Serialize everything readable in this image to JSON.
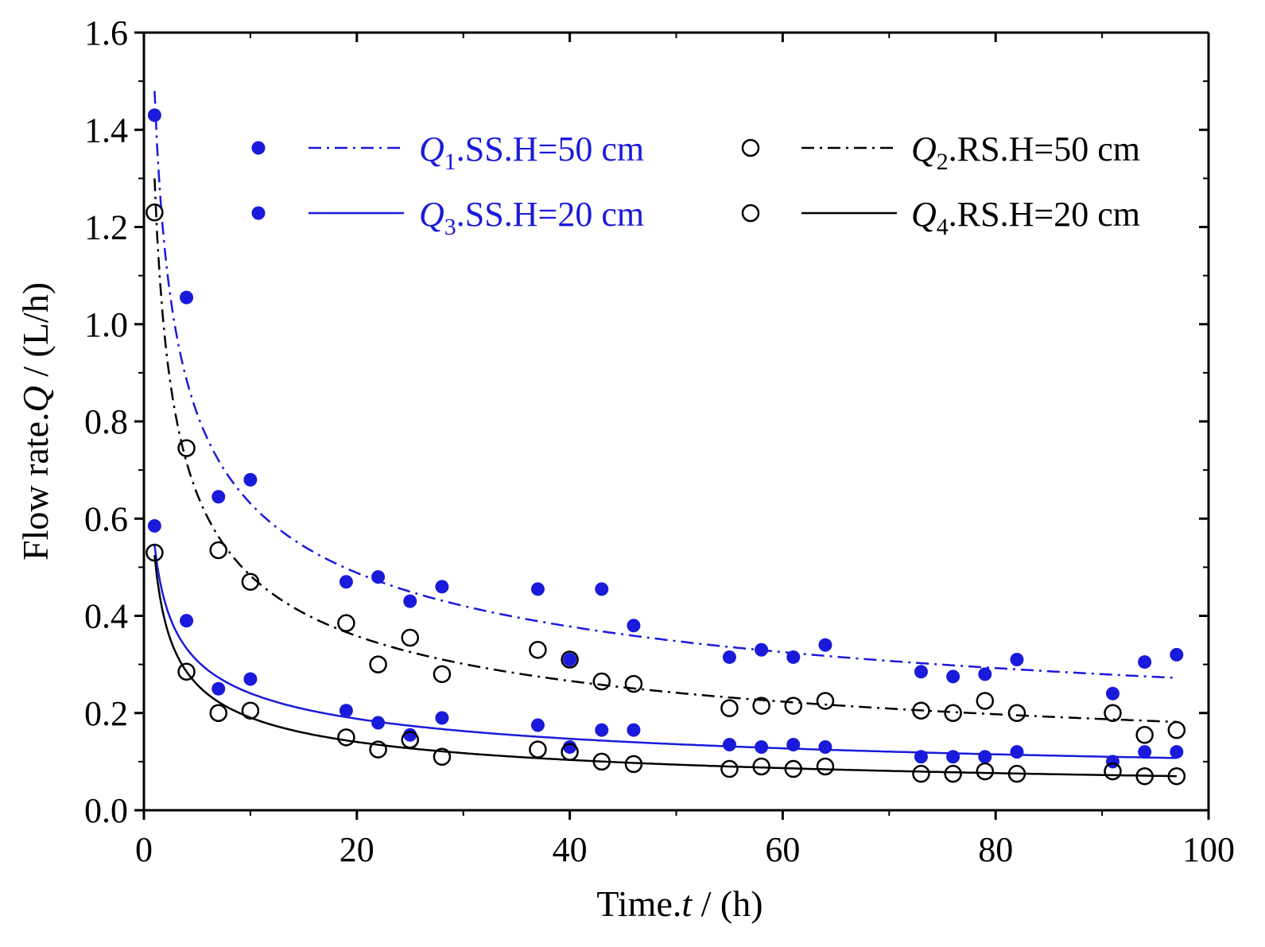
{
  "colors": {
    "blue": "#1a1adb",
    "black": "#000000"
  },
  "chart_data": {
    "type": "scatter",
    "xlabel": {
      "prefix": "Time.",
      "var": "t",
      "suffix": " / (h)"
    },
    "ylabel": {
      "prefix": "Flow rate.",
      "var": "Q",
      "suffix": " / (L/h)"
    },
    "xlim": [
      0,
      100
    ],
    "ylim": [
      0,
      1.6
    ],
    "x_ticks": [
      0,
      20,
      40,
      60,
      80,
      100
    ],
    "x_tick_labels": [
      "0",
      "20",
      "40",
      "60",
      "80",
      "100"
    ],
    "y_ticks": [
      0.0,
      0.2,
      0.4,
      0.6,
      0.8,
      1.0,
      1.2,
      1.4,
      1.6
    ],
    "y_tick_labels": [
      "0.0",
      "0.2",
      "0.4",
      "0.6",
      "0.8",
      "1.0",
      "1.2",
      "1.4",
      "1.6"
    ],
    "legend_position": "top-right",
    "series": [
      {
        "key": "q1",
        "label_var": "Q",
        "label_sub": "1",
        "label_rest": ".SS.H=50 cm",
        "marker": "filled",
        "line": "dashdot",
        "color": "blue",
        "x": [
          1,
          4,
          7,
          10,
          19,
          22,
          25,
          28,
          37,
          40,
          43,
          46,
          55,
          58,
          61,
          64,
          73,
          76,
          79,
          82,
          91,
          94,
          97
        ],
        "y": [
          1.43,
          1.055,
          0.645,
          0.68,
          0.47,
          0.48,
          0.43,
          0.46,
          0.455,
          0.31,
          0.455,
          0.38,
          0.315,
          0.33,
          0.315,
          0.34,
          0.285,
          0.275,
          0.28,
          0.31,
          0.24,
          0.305,
          0.32
        ],
        "fit": {
          "a": 1.48,
          "b": -0.37
        }
      },
      {
        "key": "q2",
        "label_var": "Q",
        "label_sub": "2",
        "label_rest": ".RS.H=50 cm",
        "marker": "open",
        "line": "dashdot",
        "color": "black",
        "x": [
          1,
          4,
          7,
          10,
          19,
          22,
          25,
          28,
          37,
          40,
          43,
          46,
          55,
          58,
          61,
          64,
          73,
          76,
          79,
          82,
          91,
          94,
          97
        ],
        "y": [
          1.23,
          0.745,
          0.535,
          0.47,
          0.385,
          0.3,
          0.355,
          0.28,
          0.33,
          0.31,
          0.265,
          0.26,
          0.21,
          0.215,
          0.215,
          0.225,
          0.205,
          0.2,
          0.225,
          0.2,
          0.2,
          0.155,
          0.165
        ],
        "fit": {
          "a": 1.3,
          "b": -0.43
        }
      },
      {
        "key": "q3",
        "label_var": "Q",
        "label_sub": "3",
        "label_rest": ".SS.H=20 cm",
        "marker": "filled",
        "line": "solid",
        "color": "blue",
        "x": [
          1,
          4,
          7,
          10,
          19,
          22,
          25,
          28,
          37,
          40,
          43,
          46,
          55,
          58,
          61,
          64,
          73,
          76,
          79,
          82,
          91,
          94,
          97
        ],
        "y": [
          0.585,
          0.39,
          0.25,
          0.27,
          0.205,
          0.18,
          0.155,
          0.19,
          0.175,
          0.13,
          0.165,
          0.165,
          0.135,
          0.13,
          0.135,
          0.13,
          0.11,
          0.11,
          0.11,
          0.12,
          0.1,
          0.12,
          0.12
        ],
        "fit": {
          "a": 0.545,
          "b": -0.355
        }
      },
      {
        "key": "q4",
        "label_var": "Q",
        "label_sub": "4",
        "label_rest": ".RS.H=20 cm",
        "marker": "open",
        "line": "solid",
        "color": "black",
        "x": [
          1,
          4,
          7,
          10,
          19,
          22,
          25,
          28,
          37,
          40,
          43,
          46,
          55,
          58,
          61,
          64,
          73,
          76,
          79,
          82,
          91,
          94,
          97
        ],
        "y": [
          0.53,
          0.285,
          0.2,
          0.205,
          0.15,
          0.125,
          0.145,
          0.11,
          0.125,
          0.12,
          0.1,
          0.095,
          0.085,
          0.09,
          0.085,
          0.09,
          0.075,
          0.075,
          0.08,
          0.075,
          0.08,
          0.07,
          0.07
        ],
        "fit": {
          "a": 0.525,
          "b": -0.44
        }
      }
    ]
  }
}
